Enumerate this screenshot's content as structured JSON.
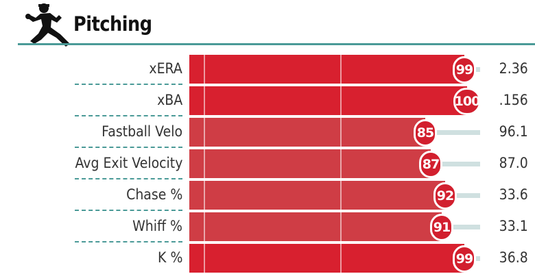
{
  "header": {
    "title": "Pitching",
    "icon": "pitcher-icon"
  },
  "colors": {
    "accent": "#4a9a97",
    "elite": "#d8202f",
    "strong": "#cf3d45",
    "badge": "#d21f2e",
    "tail": "#cfe0e0"
  },
  "rows": [
    {
      "label": "xERA",
      "percentile": 99,
      "value": "2.36"
    },
    {
      "label": "xBA",
      "percentile": 100,
      "value": ".156"
    },
    {
      "label": "Fastball Velo",
      "percentile": 85,
      "value": "96.1"
    },
    {
      "label": "Avg Exit Velocity",
      "percentile": 87,
      "value": "87.0"
    },
    {
      "label": "Chase %",
      "percentile": 92,
      "value": "33.6"
    },
    {
      "label": "Whiff %",
      "percentile": 91,
      "value": "33.1"
    },
    {
      "label": "K %",
      "percentile": 99,
      "value": "36.8"
    }
  ]
}
